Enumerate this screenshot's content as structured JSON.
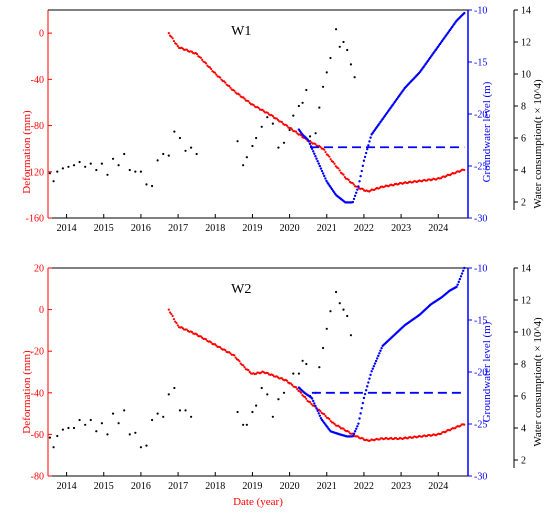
{
  "figure": {
    "xlabel": "Date (year)",
    "left_ylabel": "Deformation (mm)",
    "right_ylabel": "Groundwater level (m)",
    "far_right_ylabel": "Water consumption(t × 10^4)"
  },
  "colors": {
    "deformation": "#ff0000",
    "groundwater": "#0000ff",
    "water_consumption": "#000000",
    "axes": "#000000"
  },
  "chart_data": [
    {
      "type": "scatter",
      "title": "W1",
      "x_ticks": [
        2014,
        2015,
        2016,
        2017,
        2018,
        2019,
        2020,
        2021,
        2022,
        2023,
        2024
      ],
      "xlim": [
        2013.5,
        2024.8
      ],
      "left_ylim": [
        -160,
        20
      ],
      "left_ticks": [
        0,
        -40,
        -80,
        -120,
        -160
      ],
      "right_ylim": [
        -30,
        -10
      ],
      "right_ticks": [
        -10,
        -15,
        -20,
        -25,
        -30
      ],
      "far_right_ylim": [
        1,
        14
      ],
      "far_right_ticks": [
        2,
        4,
        6,
        8,
        10,
        12,
        14
      ],
      "deformation_knots": [
        [
          2016.75,
          0
        ],
        [
          2017.0,
          -12
        ],
        [
          2017.5,
          -18
        ],
        [
          2018.0,
          -35
        ],
        [
          2018.5,
          -50
        ],
        [
          2019.0,
          -62
        ],
        [
          2019.5,
          -71
        ],
        [
          2020.0,
          -82
        ],
        [
          2020.5,
          -93
        ],
        [
          2020.9,
          -100
        ],
        [
          2021.2,
          -113
        ],
        [
          2021.5,
          -125
        ],
        [
          2021.8,
          -133
        ],
        [
          2022.1,
          -137
        ],
        [
          2022.5,
          -133
        ],
        [
          2023.0,
          -130
        ],
        [
          2023.5,
          -128
        ],
        [
          2024.0,
          -126
        ],
        [
          2024.7,
          -118
        ]
      ],
      "groundwater_knots": [
        [
          2020.25,
          -21.5
        ],
        [
          2020.35,
          -22.0
        ],
        [
          2020.5,
          -22.5
        ],
        [
          2020.75,
          -24.5
        ],
        [
          2021.0,
          -26.5
        ],
        [
          2021.25,
          -27.8
        ],
        [
          2021.5,
          -28.5
        ],
        [
          2021.7,
          -28.5
        ],
        [
          2021.85,
          -27.0
        ],
        [
          2022.0,
          -24.5
        ],
        [
          2022.2,
          -22.0
        ],
        [
          2022.5,
          -20.5
        ],
        [
          2022.8,
          -19.0
        ],
        [
          2023.1,
          -17.5
        ],
        [
          2023.5,
          -16.0
        ],
        [
          2023.8,
          -14.5
        ],
        [
          2024.1,
          -13.0
        ],
        [
          2024.3,
          -12.0
        ],
        [
          2024.5,
          -11.0
        ],
        [
          2024.7,
          -10.3
        ]
      ],
      "dashed_groundwater_level": -23.2,
      "dashed_x_range": [
        2020.55,
        2024.7
      ],
      "water_consumption_points": [
        [
          2013.55,
          3.8
        ],
        [
          2013.65,
          3.3
        ],
        [
          2013.75,
          3.9
        ],
        [
          2013.9,
          4.1
        ],
        [
          2014.05,
          4.2
        ],
        [
          2014.2,
          4.3
        ],
        [
          2014.35,
          4.5
        ],
        [
          2014.5,
          4.2
        ],
        [
          2014.65,
          4.4
        ],
        [
          2014.8,
          4.0
        ],
        [
          2014.95,
          4.4
        ],
        [
          2015.1,
          3.7
        ],
        [
          2015.25,
          4.7
        ],
        [
          2015.4,
          4.3
        ],
        [
          2015.55,
          5.0
        ],
        [
          2015.7,
          4.0
        ],
        [
          2015.85,
          3.9
        ],
        [
          2016.0,
          3.9
        ],
        [
          2016.15,
          3.1
        ],
        [
          2016.3,
          3.0
        ],
        [
          2016.45,
          4.6
        ],
        [
          2016.6,
          5.0
        ],
        [
          2016.75,
          4.9
        ],
        [
          2016.9,
          6.4
        ],
        [
          2017.05,
          6.0
        ],
        [
          2017.2,
          5.2
        ],
        [
          2017.35,
          5.4
        ],
        [
          2017.5,
          5.0
        ],
        [
          2018.6,
          5.8
        ],
        [
          2018.75,
          4.3
        ],
        [
          2018.85,
          4.8
        ],
        [
          2019.0,
          5.5
        ],
        [
          2019.1,
          6.0
        ],
        [
          2019.25,
          6.7
        ],
        [
          2019.4,
          7.3
        ],
        [
          2019.55,
          6.9
        ],
        [
          2019.7,
          5.4
        ],
        [
          2019.85,
          5.7
        ],
        [
          2020.0,
          6.5
        ],
        [
          2020.1,
          7.4
        ],
        [
          2020.25,
          8.0
        ],
        [
          2020.35,
          8.2
        ],
        [
          2020.45,
          9.0
        ],
        [
          2020.55,
          6.1
        ],
        [
          2020.7,
          6.3
        ],
        [
          2020.8,
          7.9
        ],
        [
          2020.9,
          9.2
        ],
        [
          2021.0,
          10.1
        ],
        [
          2021.1,
          11.0
        ],
        [
          2021.25,
          12.8
        ],
        [
          2021.35,
          11.7
        ],
        [
          2021.45,
          12.0
        ],
        [
          2021.55,
          11.5
        ],
        [
          2021.65,
          10.6
        ],
        [
          2021.75,
          9.8
        ]
      ]
    },
    {
      "type": "scatter",
      "title": "W2",
      "x_ticks": [
        2014,
        2015,
        2016,
        2017,
        2018,
        2019,
        2020,
        2021,
        2022,
        2023,
        2024
      ],
      "xlim": [
        2013.5,
        2024.8
      ],
      "left_ylim": [
        -80,
        20
      ],
      "left_ticks": [
        20,
        0,
        -20,
        -40,
        -60,
        -80
      ],
      "right_ylim": [
        -30,
        -10
      ],
      "right_ticks": [
        -10,
        -15,
        -20,
        -25,
        -30
      ],
      "far_right_ylim": [
        1,
        14
      ],
      "far_right_ticks": [
        2,
        4,
        6,
        8,
        10,
        12,
        14
      ],
      "deformation_knots": [
        [
          2016.75,
          0
        ],
        [
          2017.0,
          -8
        ],
        [
          2017.5,
          -12
        ],
        [
          2018.0,
          -17
        ],
        [
          2018.5,
          -22
        ],
        [
          2018.8,
          -28
        ],
        [
          2019.0,
          -31
        ],
        [
          2019.3,
          -30
        ],
        [
          2019.6,
          -32
        ],
        [
          2019.9,
          -34
        ],
        [
          2020.2,
          -38
        ],
        [
          2020.5,
          -44
        ],
        [
          2020.9,
          -50
        ],
        [
          2021.2,
          -55
        ],
        [
          2021.5,
          -58
        ],
        [
          2021.8,
          -61
        ],
        [
          2022.1,
          -63
        ],
        [
          2022.5,
          -62
        ],
        [
          2023.0,
          -62
        ],
        [
          2023.5,
          -61
        ],
        [
          2024.0,
          -60
        ],
        [
          2024.7,
          -55
        ]
      ],
      "groundwater_knots": [
        [
          2020.25,
          -21.5
        ],
        [
          2020.4,
          -22.0
        ],
        [
          2020.6,
          -22.5
        ],
        [
          2020.85,
          -24.5
        ],
        [
          2021.1,
          -25.7
        ],
        [
          2021.35,
          -26.0
        ],
        [
          2021.55,
          -26.2
        ],
        [
          2021.7,
          -26.2
        ],
        [
          2021.85,
          -25.0
        ],
        [
          2022.0,
          -22.5
        ],
        [
          2022.2,
          -20.0
        ],
        [
          2022.5,
          -17.5
        ],
        [
          2022.8,
          -16.5
        ],
        [
          2023.1,
          -15.5
        ],
        [
          2023.5,
          -14.5
        ],
        [
          2023.8,
          -13.5
        ],
        [
          2024.1,
          -12.8
        ],
        [
          2024.3,
          -12.2
        ],
        [
          2024.5,
          -11.8
        ],
        [
          2024.7,
          -10.0
        ]
      ],
      "dashed_groundwater_level": -22.0,
      "dashed_x_range": [
        2020.6,
        2024.7
      ],
      "water_consumption_points": [
        [
          2013.55,
          3.4
        ],
        [
          2013.65,
          2.8
        ],
        [
          2013.75,
          3.5
        ],
        [
          2013.9,
          3.9
        ],
        [
          2014.05,
          4.0
        ],
        [
          2014.2,
          4.0
        ],
        [
          2014.35,
          4.5
        ],
        [
          2014.5,
          4.2
        ],
        [
          2014.65,
          4.5
        ],
        [
          2014.8,
          3.8
        ],
        [
          2014.95,
          4.3
        ],
        [
          2015.1,
          3.6
        ],
        [
          2015.25,
          4.9
        ],
        [
          2015.4,
          4.3
        ],
        [
          2015.55,
          5.1
        ],
        [
          2015.7,
          3.6
        ],
        [
          2015.85,
          3.7
        ],
        [
          2016.0,
          2.8
        ],
        [
          2016.15,
          2.9
        ],
        [
          2016.3,
          4.5
        ],
        [
          2016.45,
          4.9
        ],
        [
          2016.6,
          4.7
        ],
        [
          2016.75,
          6.1
        ],
        [
          2016.9,
          6.5
        ],
        [
          2017.05,
          5.1
        ],
        [
          2017.2,
          5.1
        ],
        [
          2017.35,
          4.7
        ],
        [
          2018.6,
          5.0
        ],
        [
          2018.75,
          4.2
        ],
        [
          2018.85,
          4.2
        ],
        [
          2019.0,
          5.0
        ],
        [
          2019.1,
          5.4
        ],
        [
          2019.25,
          6.5
        ],
        [
          2019.4,
          6.1
        ],
        [
          2019.55,
          4.7
        ],
        [
          2019.7,
          5.8
        ],
        [
          2019.85,
          6.2
        ],
        [
          2020.0,
          6.8
        ],
        [
          2020.1,
          7.4
        ],
        [
          2020.25,
          7.4
        ],
        [
          2020.35,
          8.2
        ],
        [
          2020.45,
          8.0
        ],
        [
          2020.55,
          6.0
        ],
        [
          2020.7,
          6.2
        ],
        [
          2020.8,
          7.8
        ],
        [
          2020.9,
          9.0
        ],
        [
          2021.0,
          10.2
        ],
        [
          2021.1,
          11.3
        ],
        [
          2021.25,
          12.5
        ],
        [
          2021.35,
          11.8
        ],
        [
          2021.45,
          11.4
        ],
        [
          2021.55,
          11.0
        ],
        [
          2021.65,
          9.8
        ]
      ]
    }
  ]
}
